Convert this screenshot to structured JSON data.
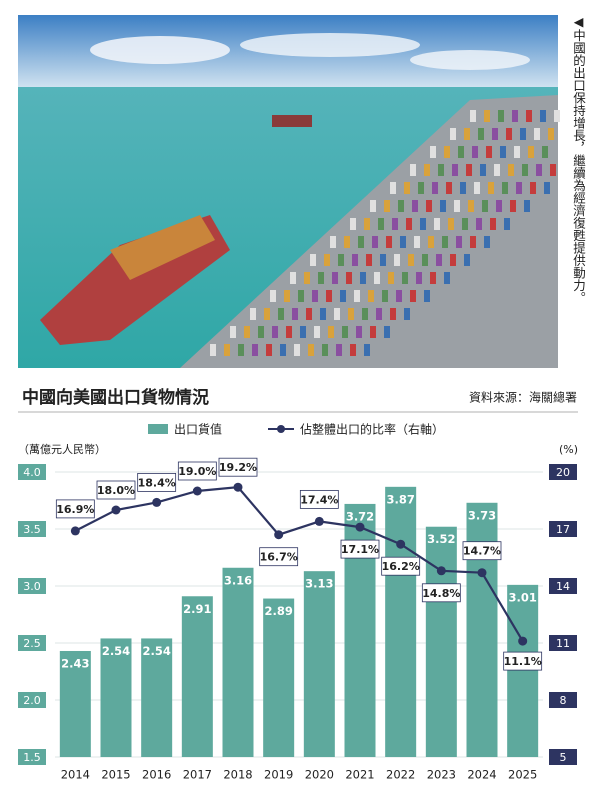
{
  "caption": "◀中國的出口保持增長，繼續為經濟復甦提供動力。",
  "chart_data": {
    "type": "bar_line",
    "title": "中國向美國出口貨物情況",
    "source": "資料來源：海關總署",
    "y_label": "（萬億元人民幣）",
    "y2_label": "(%)",
    "categories": [
      "2014",
      "2015",
      "2016",
      "2017",
      "2018",
      "2019",
      "2020",
      "2021",
      "2022",
      "2023",
      "2024",
      "2025"
    ],
    "series": [
      {
        "name": "出口貨值",
        "type": "bar",
        "color": "#5ea99d",
        "values": [
          2.43,
          2.54,
          2.54,
          2.91,
          3.16,
          2.89,
          3.13,
          3.72,
          3.87,
          3.52,
          3.73,
          3.01
        ]
      },
      {
        "name": "佔整體出口的比率（右軸）",
        "type": "line",
        "axis": "y2",
        "color": "#2d3461",
        "values": [
          16.9,
          18.0,
          18.4,
          19.0,
          19.2,
          16.7,
          17.4,
          17.1,
          16.2,
          14.8,
          14.7,
          11.1
        ],
        "value_labels": [
          "16.9%",
          "18.0%",
          "18.4%",
          "19.0%",
          "19.2%",
          "16.7%",
          "17.4%",
          "17.1%",
          "16.2%",
          "14.8%",
          "14.7%",
          "11.1%"
        ]
      }
    ],
    "ylim": [
      1.5,
      4
    ],
    "yticks": [
      1.5,
      {
        "value": 2,
        "label": "2.0"
      },
      2.5,
      {
        "value": 3,
        "label": "3.0"
      },
      3.5,
      {
        "value": 4,
        "label": "4.0"
      }
    ],
    "y2lim": [
      5,
      20
    ],
    "y2ticks": [
      5,
      8,
      11,
      14,
      17,
      20
    ],
    "grid": true
  }
}
